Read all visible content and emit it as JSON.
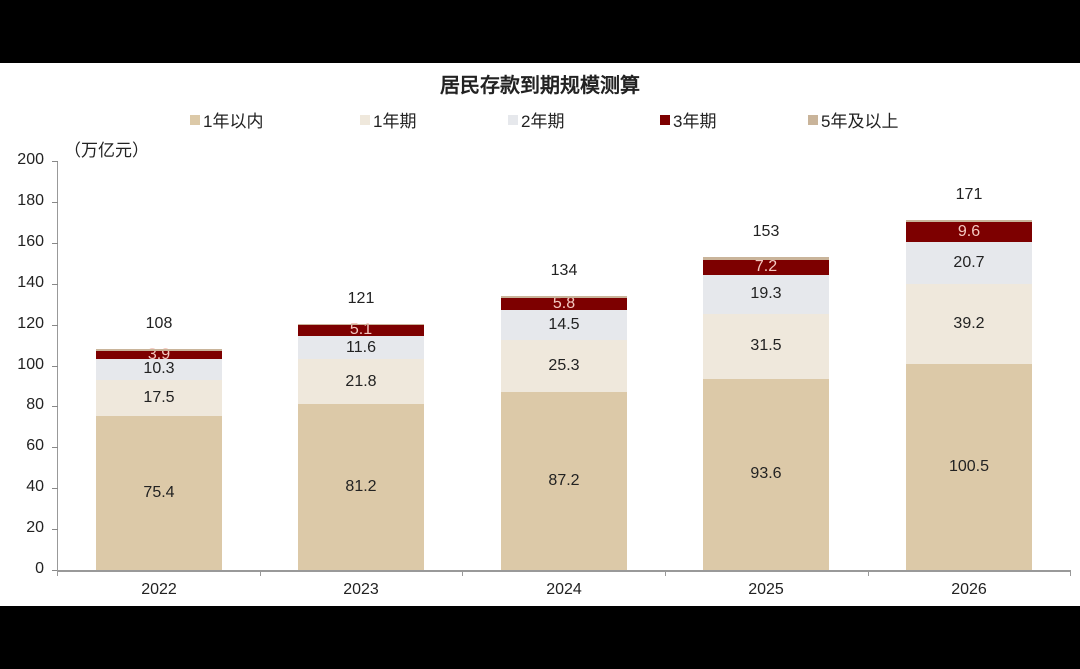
{
  "title": "居民存款到期规模测算",
  "unit_label": "（万亿元）",
  "legend": [
    {
      "label": "1年以内",
      "color": "#dcc9a8"
    },
    {
      "label": "1年期",
      "color": "#efe8dc"
    },
    {
      "label": "2年期",
      "color": "#e6e8ec"
    },
    {
      "label": "3年期",
      "color": "#7d0000"
    },
    {
      "label": "5年及以上",
      "color": "#c9b49a"
    }
  ],
  "y_ticks": [
    "0",
    "20",
    "40",
    "60",
    "80",
    "100",
    "120",
    "140",
    "160",
    "180",
    "200"
  ],
  "chart_data": {
    "type": "bar",
    "stacked": true,
    "title": "居民存款到期规模测算",
    "xlabel": "",
    "ylabel": "（万亿元）",
    "ylim": [
      0,
      200
    ],
    "y_ticks": [
      0,
      20,
      40,
      60,
      80,
      100,
      120,
      140,
      160,
      180,
      200
    ],
    "grid": false,
    "legend_position": "top",
    "categories": [
      "2022",
      "2023",
      "2024",
      "2025",
      "2026"
    ],
    "series": [
      {
        "name": "1年以内",
        "color": "#dcc9a8",
        "values": [
          75.4,
          81.2,
          87.2,
          93.6,
          100.5
        ]
      },
      {
        "name": "1年期",
        "color": "#efe8dc",
        "values": [
          17.5,
          21.8,
          25.3,
          31.5,
          39.2
        ]
      },
      {
        "name": "2年期",
        "color": "#e6e8ec",
        "values": [
          10.3,
          11.6,
          14.5,
          19.3,
          20.7
        ]
      },
      {
        "name": "3年期",
        "color": "#7d0000",
        "values": [
          3.9,
          5.1,
          5.8,
          7.2,
          9.6
        ]
      },
      {
        "name": "5年及以上",
        "color": "#c9b49a",
        "values": [
          0.9,
          0.6,
          1.2,
          1.4,
          1.0
        ]
      }
    ],
    "totals": [
      108,
      121,
      134,
      153,
      171
    ],
    "annotations": [
      "108",
      "121",
      "134",
      "153",
      "171"
    ]
  }
}
